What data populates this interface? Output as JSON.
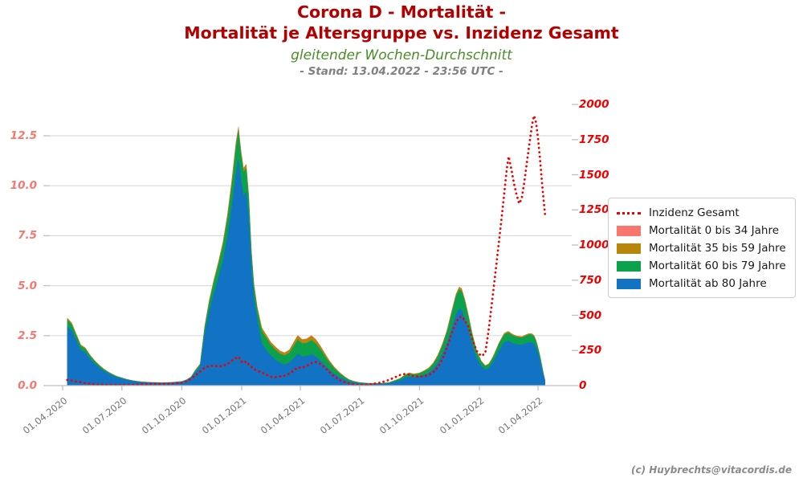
{
  "header": {
    "title_line1": "Corona D - Mortalität -",
    "title_line2": "Mortalität je Altersgruppe vs. Inzidenz Gesamt",
    "subtitle": "gleitender Wochen-Durchschnitt",
    "stand": "- Stand: 13.04.2022 - 23:56 UTC -"
  },
  "footer": {
    "copyright": "(c) Huybrechts@vitacordis.de"
  },
  "colors": {
    "title": "#b30000",
    "subtitle_green": "#4a8c28",
    "stand_gray": "#808080",
    "axis_left_labels": "#f8766d",
    "axis_right_labels": "#ee0000",
    "x_labels": "#757575",
    "grid": "#dcdcdc",
    "spine": "#c0c0c0",
    "inzidenz": "#ef0000",
    "m0": "#f8766d",
    "m35": "#b8860b",
    "m60": "#0ba14d",
    "m80": "#1273c4",
    "copyright": "#8a8a8a"
  },
  "legend": {
    "items": [
      {
        "label": "Inzidenz Gesamt",
        "color": "#ef0000",
        "type": "line"
      },
      {
        "label": "Mortalität 0 bis 34 Jahre",
        "color": "#f8766d",
        "type": "patch"
      },
      {
        "label": "Mortalität 35 bis 59 Jahre",
        "color": "#b8860b",
        "type": "patch"
      },
      {
        "label": "Mortalität 60 bis 79 Jahre",
        "color": "#0ba14d",
        "type": "patch"
      },
      {
        "label": "Mortalität ab 80 Jahre",
        "color": "#1273c4",
        "type": "patch"
      }
    ]
  },
  "chart_data": {
    "type": "area",
    "stacked": true,
    "title": "Corona D - Mortalität - Mortalität je Altersgruppe vs. Inzidenz Gesamt",
    "subtitle": "gleitender Wochen-Durchschnitt",
    "grid": "horizontal",
    "legend_position": "right",
    "y_left": {
      "tick_labels": [
        "0.0",
        "2.5",
        "5.0",
        "7.5",
        "10.0",
        "12.5"
      ],
      "tick_values": [
        0,
        2.5,
        5,
        7.5,
        10,
        12.5
      ],
      "range": [
        0,
        13.5
      ]
    },
    "y_right": {
      "tick_labels": [
        "0",
        "250",
        "500",
        "750",
        "1000",
        "1250",
        "1500",
        "1750",
        "2000"
      ],
      "tick_values": [
        0,
        250,
        500,
        750,
        1000,
        1250,
        1500,
        1750,
        2000
      ],
      "range": [
        0,
        2000
      ]
    },
    "x_tick_labels": [
      "01.04.2020",
      "01.07.2020",
      "01.10.2020",
      "01.01.2021",
      "01.04.2021",
      "01.07.2021",
      "01.10.2021",
      "01.01.2022",
      "01.04.2022"
    ],
    "columns": [
      "date",
      "mortalitaet_ab_80",
      "mortalitaet_60_79",
      "mortalitaet_35_59",
      "mortalitaet_0_34",
      "inzidenz_gesamt"
    ],
    "rows": [
      [
        "08.04.2020",
        2.96,
        0.34,
        0.08,
        0.02,
        40
      ],
      [
        "15.04.2020",
        2.74,
        0.32,
        0.07,
        0.02,
        36
      ],
      [
        "22.04.2020",
        2.26,
        0.26,
        0.06,
        0.02,
        30
      ],
      [
        "29.04.2020",
        1.78,
        0.21,
        0.05,
        0.01,
        24
      ],
      [
        "06.05.2020",
        1.65,
        0.19,
        0.045,
        0.015,
        17
      ],
      [
        "13.05.2020",
        1.35,
        0.155,
        0.035,
        0.01,
        12
      ],
      [
        "20.05.2020",
        1.11,
        0.13,
        0.03,
        0.01,
        9
      ],
      [
        "27.05.2020",
        0.91,
        0.105,
        0.025,
        0.01,
        7
      ],
      [
        "03.06.2020",
        0.74,
        0.085,
        0.02,
        0.005,
        6
      ],
      [
        "10.06.2020",
        0.61,
        0.07,
        0.015,
        0.005,
        5.5
      ],
      [
        "17.06.2020",
        0.5,
        0.06,
        0.015,
        0.005,
        5
      ],
      [
        "24.06.2020",
        0.41,
        0.047,
        0.01,
        0.003,
        5
      ],
      [
        "01.07.2020",
        0.35,
        0.04,
        0.008,
        0.002,
        4.5
      ],
      [
        "08.07.2020",
        0.29,
        0.032,
        0.007,
        0.001,
        4.5
      ],
      [
        "15.07.2020",
        0.24,
        0.029,
        0.008,
        0.003,
        6
      ],
      [
        "22.07.2020",
        0.21,
        0.024,
        0.005,
        0.001,
        7
      ],
      [
        "01.08.2020",
        0.17,
        0.022,
        0.006,
        0.002,
        9
      ],
      [
        "15.08.2020",
        0.148,
        0.016,
        0.005,
        0.001,
        12
      ],
      [
        "01.09.2020",
        0.139,
        0.015,
        0.005,
        0.001,
        11.5
      ],
      [
        "15.09.2020",
        0.148,
        0.016,
        0.005,
        0.001,
        13
      ],
      [
        "01.10.2020",
        0.19,
        0.021,
        0.007,
        0.002,
        20
      ],
      [
        "08.10.2020",
        0.26,
        0.03,
        0.008,
        0.002,
        31
      ],
      [
        "15.10.2020",
        0.39,
        0.045,
        0.012,
        0.003,
        48
      ],
      [
        "22.10.2020",
        0.69,
        0.08,
        0.022,
        0.008,
        72
      ],
      [
        "29.10.2020",
        0.95,
        0.11,
        0.03,
        0.01,
        100
      ],
      [
        "05.11.2020",
        2.6,
        0.31,
        0.07,
        0.02,
        125
      ],
      [
        "12.11.2020",
        3.73,
        0.45,
        0.1,
        0.02,
        140
      ],
      [
        "19.11.2020",
        4.6,
        0.55,
        0.12,
        0.03,
        141
      ],
      [
        "26.11.2020",
        5.38,
        0.65,
        0.14,
        0.03,
        137
      ],
      [
        "03.12.2020",
        6.25,
        0.75,
        0.16,
        0.04,
        139
      ],
      [
        "10.12.2020",
        7.46,
        0.9,
        0.2,
        0.04,
        152
      ],
      [
        "17.12.2020",
        9.02,
        1.08,
        0.25,
        0.05,
        178
      ],
      [
        "23.12.2020",
        10.6,
        1.3,
        0.25,
        0.05,
        196
      ],
      [
        "27.12.2020",
        11.38,
        1.42,
        0.17,
        0.03,
        205
      ],
      [
        "31.12.2020",
        10.3,
        1.27,
        0.2,
        0.03,
        175
      ],
      [
        "04.01.2021",
        9.52,
        1.17,
        0.18,
        0.03,
        160
      ],
      [
        "08.01.2021",
        9.7,
        1.19,
        0.18,
        0.03,
        172
      ],
      [
        "12.01.2021",
        8.38,
        1.03,
        0.16,
        0.03,
        150
      ],
      [
        "16.01.2021",
        5.9,
        0.74,
        0.14,
        0.02,
        132
      ],
      [
        "20.01.2021",
        4.38,
        0.58,
        0.12,
        0.02,
        118
      ],
      [
        "25.01.2021",
        3.32,
        0.5,
        0.11,
        0.02,
        105
      ],
      [
        "01.02.2021",
        2.1,
        0.62,
        0.16,
        0.02,
        92
      ],
      [
        "08.02.2021",
        1.78,
        0.6,
        0.15,
        0.02,
        78
      ],
      [
        "15.02.2021",
        1.49,
        0.53,
        0.14,
        0.02,
        62
      ],
      [
        "22.02.2021",
        1.3,
        0.49,
        0.14,
        0.02,
        60
      ],
      [
        "01.03.2021",
        1.14,
        0.46,
        0.13,
        0.02,
        65
      ],
      [
        "08.03.2021",
        1.06,
        0.45,
        0.13,
        0.02,
        71
      ],
      [
        "15.03.2021",
        1.14,
        0.5,
        0.14,
        0.02,
        85
      ],
      [
        "22.03.2021",
        1.38,
        0.62,
        0.17,
        0.03,
        106
      ],
      [
        "28.03.2021",
        1.59,
        0.71,
        0.2,
        0.03,
        130
      ],
      [
        "04.04.2021",
        1.46,
        0.65,
        0.18,
        0.03,
        126
      ],
      [
        "11.04.2021",
        1.48,
        0.66,
        0.19,
        0.03,
        140
      ],
      [
        "18.04.2021",
        1.57,
        0.71,
        0.21,
        0.03,
        160
      ],
      [
        "25.04.2021",
        1.45,
        0.65,
        0.19,
        0.03,
        168
      ],
      [
        "02.05.2021",
        1.25,
        0.57,
        0.16,
        0.02,
        154
      ],
      [
        "09.05.2021",
        1.02,
        0.45,
        0.13,
        0.02,
        128
      ],
      [
        "16.05.2021",
        0.79,
        0.35,
        0.1,
        0.01,
        95
      ],
      [
        "23.05.2021",
        0.6,
        0.27,
        0.07,
        0.01,
        64
      ],
      [
        "01.06.2021",
        0.42,
        0.18,
        0.04,
        0.01,
        38
      ],
      [
        "08.06.2021",
        0.3,
        0.13,
        0.03,
        0.005,
        26
      ],
      [
        "15.06.2021",
        0.21,
        0.08,
        0.018,
        0.003,
        15
      ],
      [
        "22.06.2021",
        0.16,
        0.055,
        0.013,
        0.002,
        8
      ],
      [
        "01.07.2021",
        0.12,
        0.035,
        0.009,
        0.001,
        5
      ],
      [
        "15.07.2021",
        0.09,
        0.027,
        0.007,
        0.001,
        8
      ],
      [
        "01.08.2021",
        0.09,
        0.027,
        0.007,
        0.001,
        20
      ],
      [
        "15.08.2021",
        0.115,
        0.035,
        0.009,
        0.001,
        40
      ],
      [
        "01.09.2021",
        0.26,
        0.085,
        0.021,
        0.004,
        75
      ],
      [
        "08.09.2021",
        0.38,
        0.125,
        0.03,
        0.005,
        82
      ],
      [
        "15.09.2021",
        0.46,
        0.15,
        0.038,
        0.007,
        78
      ],
      [
        "22.09.2021",
        0.42,
        0.135,
        0.034,
        0.006,
        66
      ],
      [
        "01.10.2021",
        0.46,
        0.145,
        0.036,
        0.006,
        64
      ],
      [
        "08.10.2021",
        0.54,
        0.17,
        0.042,
        0.008,
        67
      ],
      [
        "15.10.2021",
        0.64,
        0.2,
        0.05,
        0.009,
        75
      ],
      [
        "22.10.2021",
        0.83,
        0.25,
        0.055,
        0.01,
        95
      ],
      [
        "29.10.2021",
        1.13,
        0.33,
        0.07,
        0.012,
        130
      ],
      [
        "05.11.2021",
        1.56,
        0.44,
        0.085,
        0.014,
        185
      ],
      [
        "12.11.2021",
        2.1,
        0.57,
        0.1,
        0.016,
        270
      ],
      [
        "19.11.2021",
        2.82,
        0.76,
        0.1,
        0.018,
        365
      ],
      [
        "26.11.2021",
        3.55,
        0.92,
        0.11,
        0.019,
        450
      ],
      [
        "01.12.2021",
        3.86,
        0.95,
        0.12,
        0.02,
        485
      ],
      [
        "05.12.2021",
        3.78,
        0.93,
        0.12,
        0.02,
        492
      ],
      [
        "10.12.2021",
        3.35,
        0.82,
        0.11,
        0.018,
        460
      ],
      [
        "15.12.2021",
        2.8,
        0.69,
        0.09,
        0.016,
        420
      ],
      [
        "21.12.2021",
        2.06,
        0.5,
        0.075,
        0.013,
        330
      ],
      [
        "28.12.2021",
        1.36,
        0.33,
        0.05,
        0.01,
        245
      ],
      [
        "04.01.2022",
        0.98,
        0.22,
        0.04,
        0.008,
        210
      ],
      [
        "10.01.2022",
        0.81,
        0.17,
        0.033,
        0.006,
        230
      ],
      [
        "15.01.2022",
        0.87,
        0.18,
        0.04,
        0.007,
        390
      ],
      [
        "19.01.2022",
        1.03,
        0.21,
        0.05,
        0.009,
        540
      ],
      [
        "23.01.2022",
        1.24,
        0.25,
        0.05,
        0.01,
        700
      ],
      [
        "27.01.2022",
        1.49,
        0.3,
        0.05,
        0.011,
        860
      ],
      [
        "31.01.2022",
        1.74,
        0.35,
        0.05,
        0.012,
        1020
      ],
      [
        "04.02.2022",
        1.95,
        0.38,
        0.055,
        0.013,
        1190
      ],
      [
        "08.02.2022",
        2.15,
        0.4,
        0.06,
        0.013,
        1360
      ],
      [
        "12.02.2022",
        2.22,
        0.41,
        0.06,
        0.014,
        1540
      ],
      [
        "15.02.2022",
        2.24,
        0.41,
        0.06,
        0.014,
        1630
      ],
      [
        "19.02.2022",
        2.16,
        0.39,
        0.06,
        0.013,
        1540
      ],
      [
        "23.02.2022",
        2.11,
        0.38,
        0.05,
        0.012,
        1440
      ],
      [
        "27.02.2022",
        2.07,
        0.37,
        0.05,
        0.012,
        1360
      ],
      [
        "03.03.2022",
        2.06,
        0.36,
        0.05,
        0.012,
        1295
      ],
      [
        "07.03.2022",
        2.04,
        0.36,
        0.05,
        0.012,
        1330
      ],
      [
        "11.03.2022",
        2.09,
        0.37,
        0.05,
        0.012,
        1450
      ],
      [
        "15.03.2022",
        2.14,
        0.38,
        0.05,
        0.013,
        1590
      ],
      [
        "19.03.2022",
        2.17,
        0.39,
        0.05,
        0.013,
        1730
      ],
      [
        "23.03.2022",
        2.16,
        0.38,
        0.05,
        0.012,
        1860
      ],
      [
        "26.03.2022",
        2.09,
        0.37,
        0.05,
        0.012,
        1920
      ],
      [
        "29.03.2022",
        1.91,
        0.33,
        0.05,
        0.011,
        1870
      ],
      [
        "01.04.2022",
        1.62,
        0.28,
        0.04,
        0.009,
        1760
      ],
      [
        "04.04.2022",
        1.29,
        0.22,
        0.033,
        0.007,
        1620
      ],
      [
        "07.04.2022",
        0.87,
        0.15,
        0.024,
        0.005,
        1450
      ],
      [
        "10.04.2022",
        0.45,
        0.08,
        0.015,
        0.003,
        1300
      ],
      [
        "12.04.2022",
        0.23,
        0.04,
        0.008,
        0.002,
        1210
      ]
    ]
  }
}
